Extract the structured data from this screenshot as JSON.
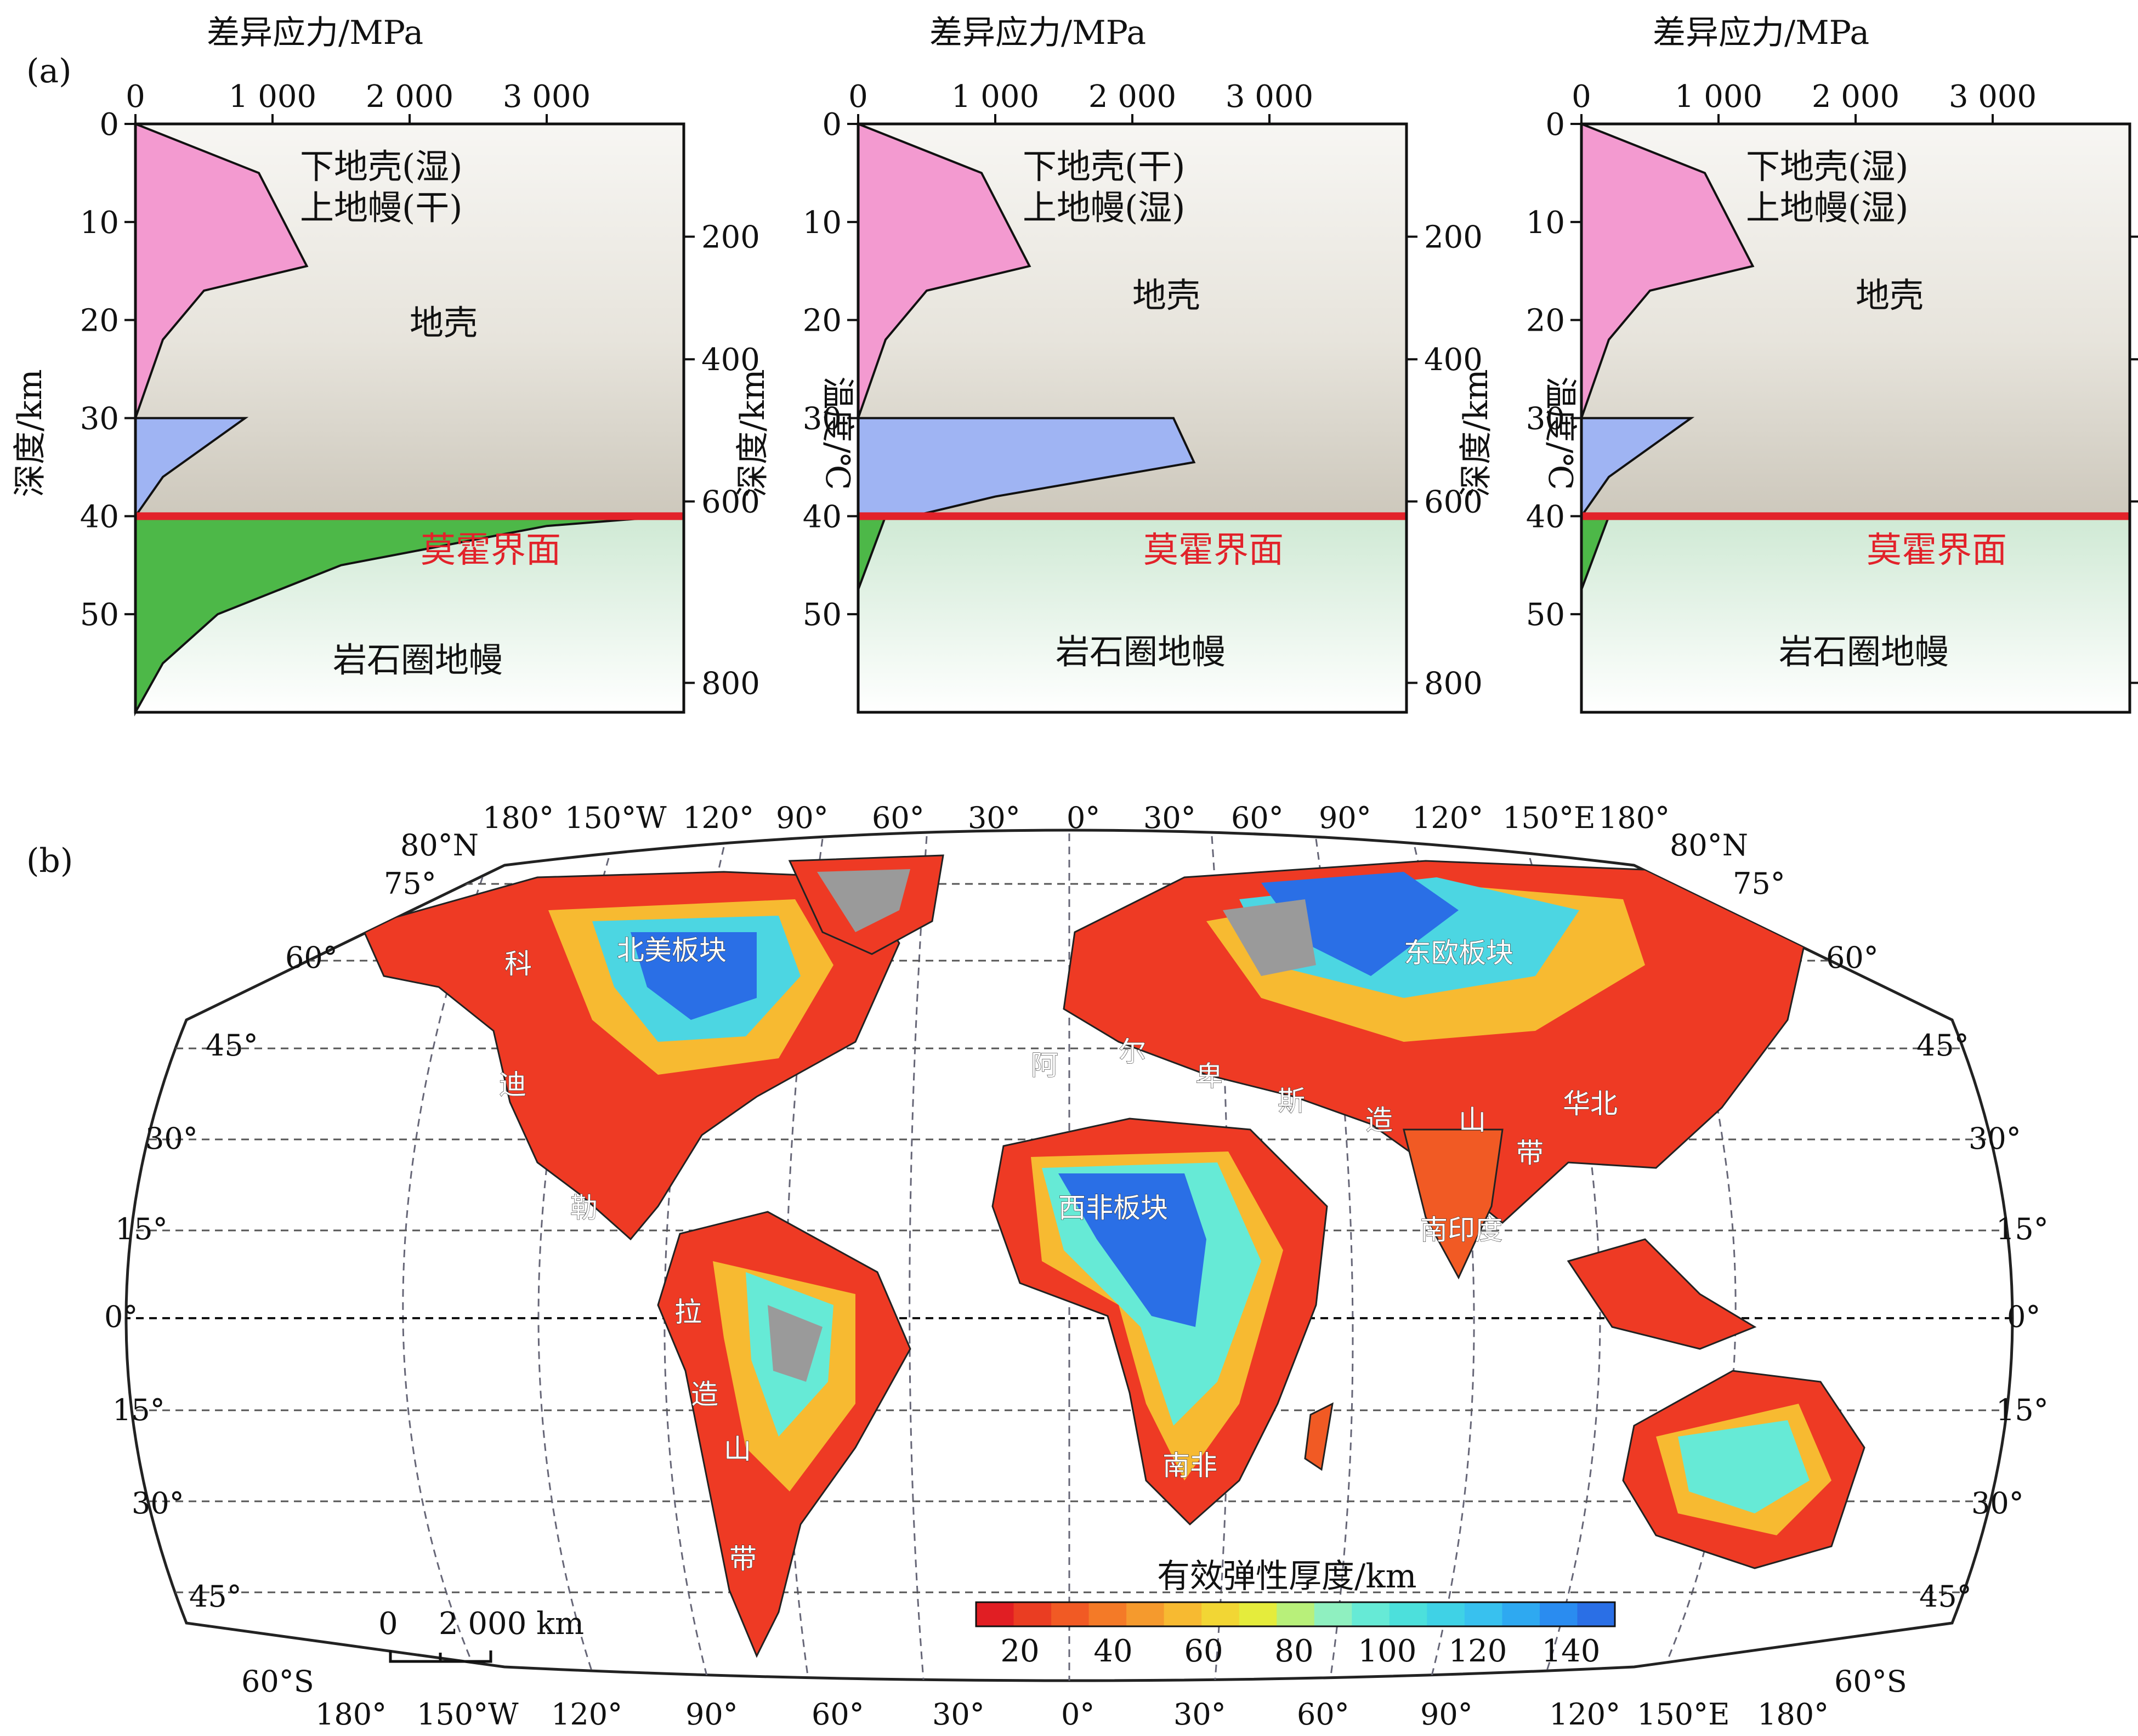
{
  "panel_a": {
    "label": "(a)",
    "stress_axis_title": "差异应力/MPa",
    "stress_ticks": [
      "0",
      "1 000",
      "2 000",
      "3 000"
    ],
    "depth_title": "深度/km",
    "depth_ticks": [
      "0",
      "10",
      "20",
      "30",
      "40",
      "50"
    ],
    "temp_title": "温度/℃",
    "temp_ticks": [
      "200",
      "400",
      "600",
      "800"
    ],
    "crust_label": "地壳",
    "mantle_label": "岩石圈地幔",
    "moho_label": "莫霍界面",
    "colors": {
      "crust_stress": "#f39ad0",
      "lower_crust_stress": "#9fb4f3",
      "mantle_stress": "#4db848",
      "moho_line": "#e2222a"
    },
    "plots": [
      {
        "line1": "下地壳(湿)",
        "line2": "上地幔(干)"
      },
      {
        "line1": "下地壳(干)",
        "line2": "上地幔(湿)"
      },
      {
        "line1": "下地壳(湿)",
        "line2": "上地幔(湿)"
      }
    ]
  },
  "panel_b": {
    "label": "(b)",
    "top_lon_labels": [
      "180°",
      "150°W",
      "120°",
      "90°",
      "60°",
      "30°",
      "0°",
      "30°",
      "60°",
      "90°",
      "120°",
      "150°E",
      "180°"
    ],
    "bottom_lon_labels": [
      "180°",
      "150°W",
      "120°",
      "90°",
      "60°",
      "30°",
      "0°",
      "30°",
      "60°",
      "90°",
      "120°",
      "150°E",
      "180°"
    ],
    "lat_labels_left": [
      "80°N",
      "75°",
      "60°",
      "45°",
      "30°",
      "15°",
      "0°",
      "15°",
      "30°",
      "45°",
      "60°S"
    ],
    "lat_labels_right": [
      "80°N",
      "75°",
      "60°",
      "45°",
      "30°",
      "15°",
      "0°",
      "15°",
      "30°",
      "45°",
      "60°S"
    ],
    "regions": {
      "north_america": "北美板块",
      "east_europe": "东欧板块",
      "west_africa": "西非板块",
      "south_africa": "南非",
      "south_india": "南印度",
      "north_china": "华北",
      "cordillera": [
        "科",
        "迪",
        "勒",
        "拉",
        "造",
        "山",
        "带"
      ],
      "alpine": [
        "阿",
        "尔",
        "卑",
        "斯",
        "造",
        "山",
        "带"
      ]
    },
    "scale_bar": {
      "start": "0",
      "end": "2 000 km"
    },
    "colorbar": {
      "title": "有效弹性厚度/km",
      "ticks": [
        "20",
        "40",
        "60",
        "80",
        "100",
        "120",
        "140"
      ],
      "colors": [
        "#e11e23",
        "#ea3d22",
        "#f15a24",
        "#f47a27",
        "#f59a2d",
        "#f7ba31",
        "#f2d634",
        "#e5ec3c",
        "#b8f07a",
        "#8ff0c0",
        "#66ead6",
        "#4ce0dc",
        "#3fd2e6",
        "#38c1ef",
        "#2ea9f1",
        "#2a8cf0",
        "#2a6fe6"
      ]
    }
  }
}
